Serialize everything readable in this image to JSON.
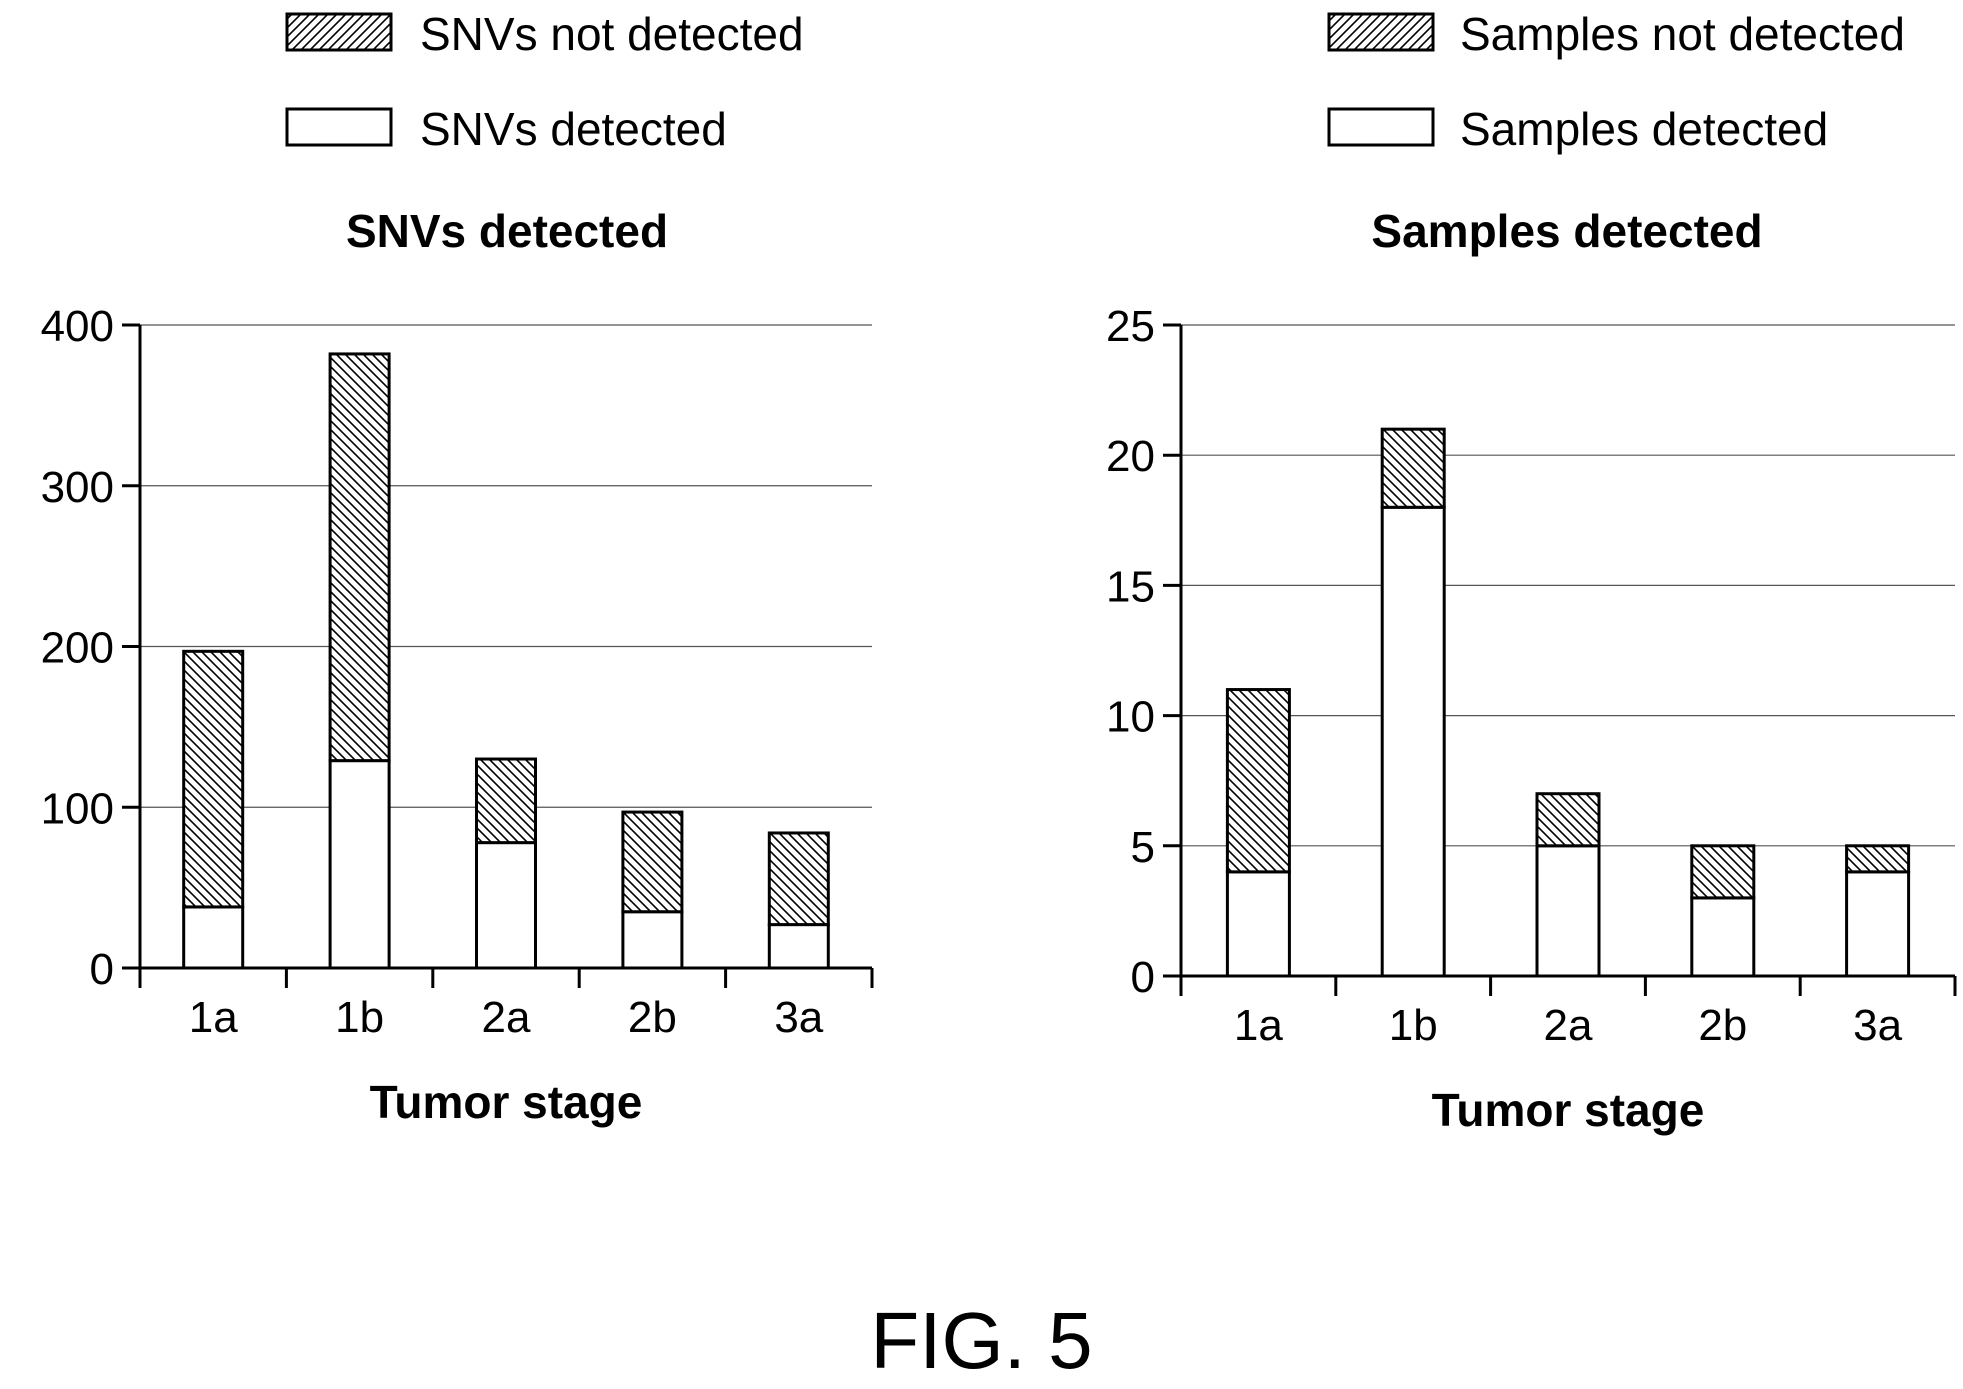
{
  "figure_label": "FIG. 5",
  "chart_data": [
    {
      "type": "bar",
      "stacked": true,
      "title": "SNVs detected",
      "xlabel": "Tumor stage",
      "ylabel": "",
      "categories": [
        "1a",
        "1b",
        "2a",
        "2b",
        "3a"
      ],
      "ylim": [
        0,
        400
      ],
      "yticks": [
        0,
        100,
        200,
        300,
        400
      ],
      "grid": true,
      "legend_position": "top",
      "series": [
        {
          "name": "SNVs detected",
          "values": [
            38,
            129,
            78,
            35,
            27
          ],
          "pattern": "none"
        },
        {
          "name": "SNVs not detected",
          "values": [
            159,
            253,
            52,
            62,
            57
          ],
          "pattern": "hatch"
        }
      ]
    },
    {
      "type": "bar",
      "stacked": true,
      "title": "Samples detected",
      "xlabel": "Tumor stage",
      "ylabel": "",
      "categories": [
        "1a",
        "1b",
        "2a",
        "2b",
        "3a"
      ],
      "ylim": [
        0,
        25
      ],
      "yticks": [
        0,
        5,
        10,
        15,
        20,
        25
      ],
      "grid": true,
      "legend_position": "top",
      "series": [
        {
          "name": "Samples detected",
          "values": [
            4,
            18,
            5,
            3,
            4
          ],
          "pattern": "none"
        },
        {
          "name": "Samples not detected",
          "values": [
            7,
            3,
            2,
            2,
            1
          ],
          "pattern": "hatch"
        }
      ]
    }
  ]
}
